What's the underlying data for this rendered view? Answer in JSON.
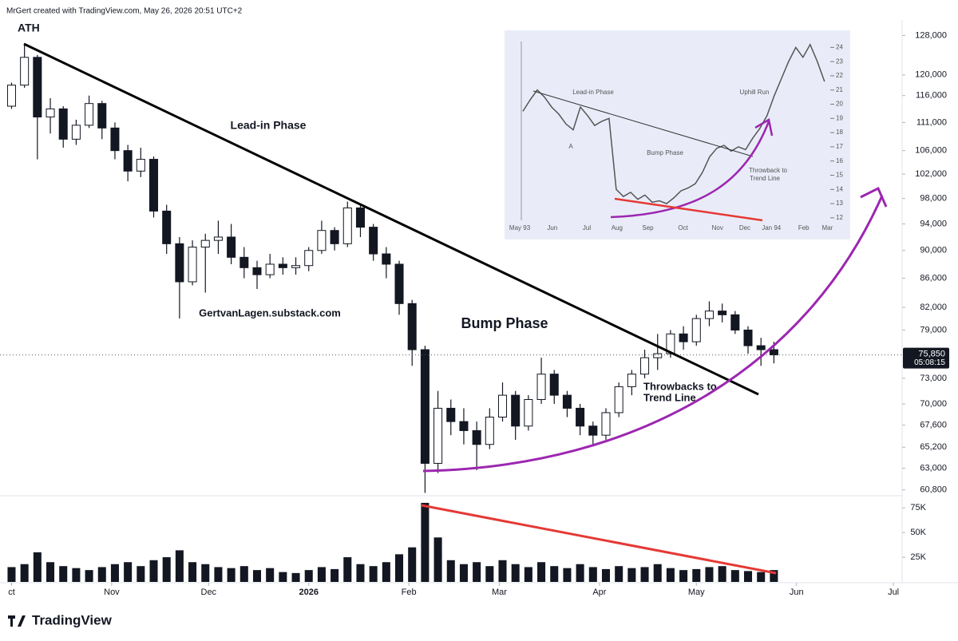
{
  "header": "MrGert created with TradingView.com, May 26, 2026 20:51 UTC+2",
  "footer": "TradingView",
  "chart_data": [
    {
      "type": "candlestick",
      "log_scale": true,
      "up_color": "#ffffff",
      "down_color": "#131722",
      "xlim": [
        -0.4,
        68.8
      ],
      "xticks": [
        {
          "value": 0,
          "label": "ct"
        },
        {
          "value": 7.75,
          "label": "Nov"
        },
        {
          "value": 15.25,
          "label": "Dec"
        },
        {
          "value": 23,
          "label": "2026"
        },
        {
          "value": 30.75,
          "label": "Feb"
        },
        {
          "value": 37.75,
          "label": "Mar"
        },
        {
          "value": 45.5,
          "label": "Apr"
        },
        {
          "value": 53,
          "label": "May"
        },
        {
          "value": 60.75,
          "label": "Jun"
        },
        {
          "value": 68.25,
          "label": "Jul"
        }
      ],
      "ylim": [
        60300,
        131300
      ],
      "yticks": [
        {
          "value": 128000,
          "label": "128,000"
        },
        {
          "value": 120000,
          "label": "120,000"
        },
        {
          "value": 116000,
          "label": "116,000"
        },
        {
          "value": 111000,
          "label": "111,000"
        },
        {
          "value": 106000,
          "label": "106,000"
        },
        {
          "value": 102000,
          "label": "102,000"
        },
        {
          "value": 98000,
          "label": "98,000"
        },
        {
          "value": 94000,
          "label": "94,000"
        },
        {
          "value": 90000,
          "label": "90,000"
        },
        {
          "value": 86000,
          "label": "86,000"
        },
        {
          "value": 82000,
          "label": "82,000"
        },
        {
          "value": 79000,
          "label": "79,000"
        },
        {
          "value": 73000,
          "label": "73,000"
        },
        {
          "value": 70000,
          "label": "70,000"
        },
        {
          "value": 67600,
          "label": "67,600"
        },
        {
          "value": 65200,
          "label": "65,200"
        },
        {
          "value": 63000,
          "label": "63,000"
        },
        {
          "value": 60800,
          "label": "60,800"
        }
      ],
      "open": [
        114000,
        118000,
        123500,
        112000,
        113500,
        108000,
        110500,
        114500,
        110000,
        106000,
        102500,
        104500,
        96000,
        91000,
        85500,
        90500,
        91500,
        92000,
        89000,
        87500,
        86500,
        88000,
        87500,
        87800,
        90000,
        93000,
        91000,
        96500,
        93500,
        89500,
        88000,
        82500,
        76500,
        63500,
        69500,
        68000,
        67000,
        65500,
        68500,
        71000,
        67500,
        70500,
        73500,
        71000,
        69500,
        67500,
        66500,
        69000,
        72000,
        73500,
        75500,
        76000,
        78500,
        77500,
        80500,
        81500,
        81000,
        79000,
        77000,
        76500
      ],
      "high": [
        118500,
        126000,
        124000,
        115500,
        114000,
        111500,
        116000,
        115000,
        111000,
        107000,
        106500,
        105000,
        97000,
        92000,
        91500,
        92500,
        94500,
        94000,
        90500,
        88500,
        89500,
        89000,
        89000,
        90500,
        94500,
        93500,
        97500,
        97000,
        94000,
        90500,
        88500,
        83000,
        77000,
        71500,
        70500,
        69500,
        68000,
        69500,
        72500,
        71500,
        71000,
        75500,
        74000,
        71500,
        70000,
        68000,
        69500,
        72500,
        74000,
        76500,
        78500,
        79000,
        79500,
        81000,
        82800,
        82500,
        81500,
        79500,
        78000,
        77500
      ],
      "low": [
        113500,
        117500,
        104500,
        109000,
        106500,
        107000,
        110000,
        108000,
        104500,
        100800,
        101500,
        95000,
        89500,
        80500,
        85000,
        84000,
        89500,
        88000,
        86000,
        84500,
        86000,
        86500,
        86500,
        87000,
        89500,
        90000,
        90500,
        92000,
        88500,
        86000,
        81000,
        74500,
        60500,
        62500,
        66500,
        65500,
        62800,
        65000,
        68000,
        66000,
        67000,
        70000,
        70000,
        68500,
        66500,
        65500,
        66000,
        68500,
        71000,
        73000,
        74000,
        75500,
        76500,
        77000,
        79500,
        80000,
        78500,
        76000,
        74500,
        74800
      ],
      "close": [
        118000,
        123500,
        112000,
        113500,
        108000,
        110500,
        114500,
        110000,
        106000,
        102500,
        104500,
        96000,
        91000,
        85500,
        90500,
        91500,
        92000,
        89000,
        87500,
        86500,
        88000,
        87500,
        87800,
        90000,
        93000,
        91000,
        96500,
        93500,
        89500,
        88000,
        82500,
        76500,
        63500,
        69500,
        68000,
        67000,
        65500,
        68500,
        71000,
        67500,
        70500,
        73500,
        71000,
        69500,
        67500,
        66500,
        69000,
        72000,
        73500,
        75500,
        76000,
        78500,
        77500,
        80500,
        81500,
        81000,
        79000,
        77000,
        76500,
        75850
      ],
      "last_price": {
        "value": 75850,
        "label": "75,850"
      },
      "countdown": "05:08:15",
      "volume": {
        "color": "#131722",
        "ylim": [
          0,
          84000
        ],
        "yticks": [
          {
            "value": 25000,
            "label": "25K"
          },
          {
            "value": 50000,
            "label": "50K"
          },
          {
            "value": 75000,
            "label": "75K"
          }
        ],
        "values": [
          15000,
          18000,
          30000,
          20000,
          16000,
          14000,
          12000,
          15000,
          18000,
          20000,
          16000,
          22000,
          25000,
          32000,
          20000,
          18000,
          15000,
          14000,
          16000,
          12000,
          14000,
          10000,
          9000,
          12000,
          15000,
          13000,
          25000,
          18000,
          16000,
          20000,
          28000,
          35000,
          80000,
          45000,
          22000,
          18000,
          20000,
          16000,
          22000,
          18000,
          15000,
          20000,
          16000,
          14000,
          18000,
          15000,
          13000,
          16000,
          14000,
          15000,
          18000,
          14000,
          12000,
          13000,
          15000,
          16000,
          12000,
          11000,
          10000,
          12000
        ]
      },
      "annotations": [
        "ATH",
        "Lead-in Phase",
        "GertvanLagen.substack.com",
        "Bump Phase",
        "Throwbacks to",
        "Trend Line"
      ]
    },
    {
      "type": "line",
      "color": "#555555",
      "xlim": [
        -2,
        42.8
      ],
      "xticks": [
        {
          "value": -0.44,
          "label": "May 93"
        },
        {
          "value": 4.1,
          "label": "Jun"
        },
        {
          "value": 8.9,
          "label": "Jul"
        },
        {
          "value": 13.1,
          "label": "Aug"
        },
        {
          "value": 17.4,
          "label": "Sep"
        },
        {
          "value": 22.3,
          "label": "Oct"
        },
        {
          "value": 27.1,
          "label": "Nov"
        },
        {
          "value": 30.9,
          "label": "Dec"
        },
        {
          "value": 34.6,
          "label": "Jan 94"
        },
        {
          "value": 39.1,
          "label": "Feb"
        },
        {
          "value": 42.4,
          "label": "Mar"
        }
      ],
      "ylim": [
        11.6,
        25.2
      ],
      "yticks": [
        12,
        13,
        14,
        15,
        16,
        17,
        18,
        19,
        20,
        21,
        22,
        23,
        24
      ],
      "values": [
        19.5,
        20.3,
        21.0,
        20.5,
        19.8,
        19.3,
        18.6,
        18.2,
        19.8,
        19.2,
        18.5,
        18.8,
        19.0,
        14.0,
        13.5,
        13.8,
        13.3,
        13.6,
        13.1,
        13.2,
        13.0,
        13.4,
        13.9,
        14.1,
        14.4,
        15.2,
        16.3,
        16.9,
        17.1,
        16.7,
        17.0,
        16.8,
        17.6,
        18.3,
        19.2,
        20.6,
        21.8,
        23.0,
        24.0,
        23.3,
        24.2,
        23.0,
        21.6
      ],
      "annotations": [
        "Lead-in Phase",
        "A",
        "Bump Phase",
        "Uphill Run",
        "Throwback to",
        "Trend Line"
      ]
    }
  ]
}
